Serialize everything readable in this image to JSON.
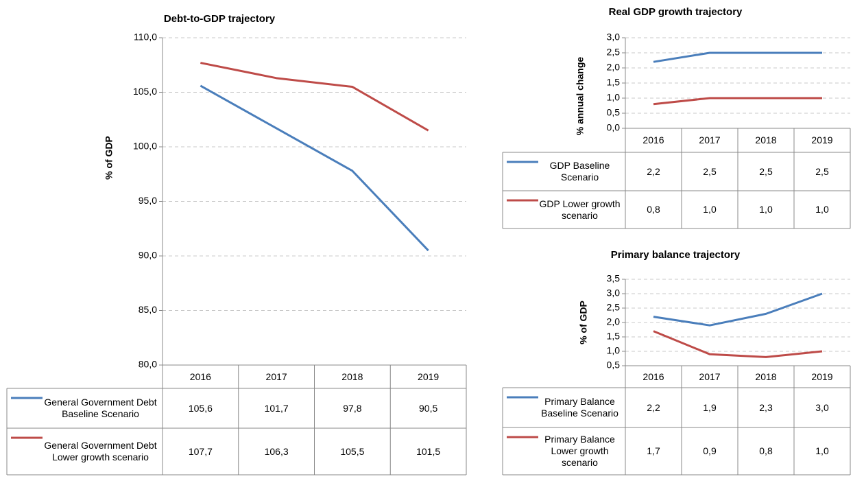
{
  "chart_data": [
    {
      "type": "line",
      "title": "Debt-to-GDP trajectory",
      "y_label": "% of GDP",
      "categories": [
        "2016",
        "2017",
        "2018",
        "2019"
      ],
      "series": [
        {
          "name": "General Government Debt Baseline Scenario",
          "color": "#4a7ebb",
          "values": [
            105.6,
            101.7,
            97.8,
            90.5
          ],
          "value_labels": [
            "105,6",
            "101,7",
            "97,8",
            "90,5"
          ]
        },
        {
          "name": "General Government Debt Lower growth scenario",
          "color": "#be4b48",
          "values": [
            107.7,
            106.3,
            105.5,
            101.5
          ],
          "value_labels": [
            "107,7",
            "106,3",
            "105,5",
            "101,5"
          ]
        }
      ],
      "ylim": [
        80,
        110
      ],
      "yticks": [
        {
          "value": 80,
          "label": "80,0"
        },
        {
          "value": 85,
          "label": "85,0"
        },
        {
          "value": 90,
          "label": "90,0"
        },
        {
          "value": 95,
          "label": "95,0"
        },
        {
          "value": 100,
          "label": "100,0"
        },
        {
          "value": 105,
          "label": "105,0"
        },
        {
          "value": 110,
          "label": "110,0"
        }
      ],
      "grid": true
    },
    {
      "type": "line",
      "title": "Real GDP growth trajectory",
      "y_label": "% annual  change",
      "categories": [
        "2016",
        "2017",
        "2018",
        "2019"
      ],
      "series": [
        {
          "name": "GDP Baseline Scenario",
          "color": "#4a7ebb",
          "values": [
            2.2,
            2.5,
            2.5,
            2.5
          ],
          "value_labels": [
            "2,2",
            "2,5",
            "2,5",
            "2,5"
          ]
        },
        {
          "name": "GDP Lower growth scenario",
          "color": "#be4b48",
          "values": [
            0.8,
            1.0,
            1.0,
            1.0
          ],
          "value_labels": [
            "0,8",
            "1,0",
            "1,0",
            "1,0"
          ]
        }
      ],
      "ylim": [
        0,
        3
      ],
      "yticks": [
        {
          "value": 0,
          "label": "0,0"
        },
        {
          "value": 0.5,
          "label": "0,5"
        },
        {
          "value": 1,
          "label": "1,0"
        },
        {
          "value": 1.5,
          "label": "1,5"
        },
        {
          "value": 2,
          "label": "2,0"
        },
        {
          "value": 2.5,
          "label": "2,5"
        },
        {
          "value": 3,
          "label": "3,0"
        }
      ],
      "grid": true
    },
    {
      "type": "line",
      "title": "Primary balance trajectory",
      "y_label": "% of GDP",
      "categories": [
        "2016",
        "2017",
        "2018",
        "2019"
      ],
      "series": [
        {
          "name": "Primary Balance Baseline Scenario",
          "color": "#4a7ebb",
          "values": [
            2.2,
            1.9,
            2.3,
            3.0
          ],
          "value_labels": [
            "2,2",
            "1,9",
            "2,3",
            "3,0"
          ]
        },
        {
          "name": "Primary Balance Lower growth scenario",
          "color": "#be4b48",
          "values": [
            1.7,
            0.9,
            0.8,
            1.0
          ],
          "value_labels": [
            "1,7",
            "0,9",
            "0,8",
            "1,0"
          ]
        }
      ],
      "ylim": [
        0.5,
        3.5
      ],
      "yticks": [
        {
          "value": 0.5,
          "label": "0,5"
        },
        {
          "value": 1,
          "label": "1,0"
        },
        {
          "value": 1.5,
          "label": "1,5"
        },
        {
          "value": 2,
          "label": "2,0"
        },
        {
          "value": 2.5,
          "label": "2,5"
        },
        {
          "value": 3,
          "label": "3,0"
        },
        {
          "value": 3.5,
          "label": "3,5"
        }
      ],
      "grid": true
    }
  ]
}
